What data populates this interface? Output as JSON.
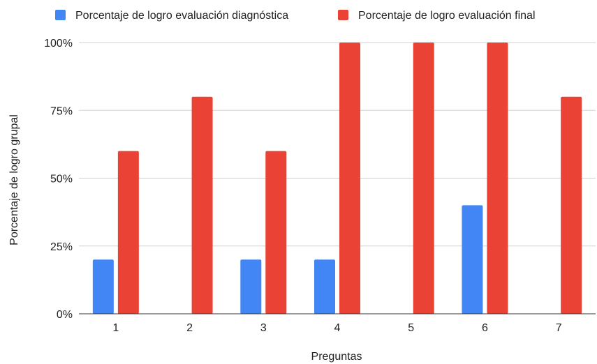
{
  "chart_data": {
    "type": "bar",
    "title": "",
    "xlabel": "Preguntas",
    "ylabel": "Porcentaje de logro grupal",
    "categories": [
      "1",
      "2",
      "3",
      "4",
      "5",
      "6",
      "7"
    ],
    "ylim": [
      0,
      100
    ],
    "y_ticks": [
      0,
      25,
      50,
      75,
      100
    ],
    "y_tick_labels": [
      "0%",
      "25%",
      "50%",
      "75%",
      "100%"
    ],
    "grid": true,
    "legend_position": "top",
    "series": [
      {
        "name": "Porcentaje de logro evaluación diagnóstica",
        "color": "#4285f4",
        "values": [
          20,
          0,
          20,
          20,
          0,
          40,
          0
        ]
      },
      {
        "name": "Porcentaje de logro evaluación final",
        "color": "#ea4335",
        "values": [
          60,
          80,
          60,
          100,
          100,
          100,
          80
        ]
      }
    ]
  }
}
